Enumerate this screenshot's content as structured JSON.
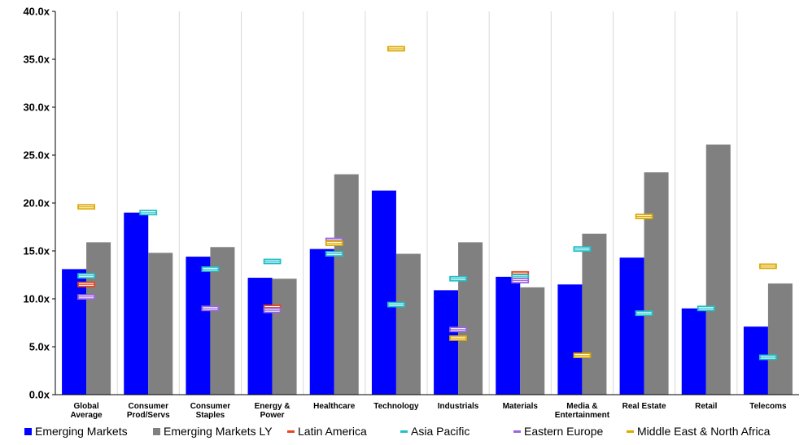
{
  "chart_data": {
    "type": "bar",
    "title": "",
    "xlabel": "",
    "ylabel": "",
    "ylim": [
      0,
      40
    ],
    "yticks": [
      "0.0x",
      "5.0x",
      "10.0x",
      "15.0x",
      "20.0x",
      "25.0x",
      "30.0x",
      "35.0x",
      "40.0x"
    ],
    "grid": "vertical separators between categories",
    "legend_position": "bottom",
    "categories": [
      [
        "Global",
        "Average"
      ],
      [
        "Consumer",
        "Prod/Servs"
      ],
      [
        "Consumer",
        "Staples"
      ],
      [
        "Energy &",
        "Power"
      ],
      [
        "Healthcare"
      ],
      [
        "Technology"
      ],
      [
        "Industrials"
      ],
      [
        "Materials"
      ],
      [
        "Media &",
        "Entertainment"
      ],
      [
        "Real Estate"
      ],
      [
        "Retail"
      ],
      [
        "Telecoms"
      ]
    ],
    "bar_series": [
      {
        "name": "Emerging Markets",
        "color": "#0000ff",
        "values": [
          13.1,
          19.0,
          14.4,
          12.2,
          15.2,
          21.3,
          10.9,
          12.3,
          11.5,
          14.3,
          9.0,
          7.1
        ]
      },
      {
        "name": "Emerging Markets LY",
        "color": "#808080",
        "values": [
          15.9,
          14.8,
          15.4,
          12.1,
          23.0,
          14.7,
          15.9,
          11.2,
          16.8,
          23.2,
          26.1,
          11.6
        ]
      }
    ],
    "marker_series": [
      {
        "name": "Latin America",
        "color": "#e8461e",
        "values": [
          11.5,
          null,
          null,
          9.1,
          null,
          null,
          null,
          12.6,
          null,
          null,
          null,
          null
        ]
      },
      {
        "name": "Asia Pacific",
        "color": "#20c0c8",
        "values": [
          12.4,
          19.0,
          13.1,
          13.9,
          14.7,
          9.4,
          12.1,
          12.3,
          15.2,
          8.5,
          9.0,
          3.9
        ]
      },
      {
        "name": "Eastern Europe",
        "color": "#9966dd",
        "values": [
          10.2,
          null,
          9.0,
          8.8,
          16.1,
          null,
          6.8,
          11.9,
          null,
          null,
          null,
          null
        ]
      },
      {
        "name": "Middle East & North Africa",
        "color": "#ddaa00",
        "values": [
          19.6,
          null,
          null,
          null,
          15.8,
          36.1,
          5.9,
          null,
          4.1,
          18.6,
          null,
          13.4
        ]
      }
    ]
  }
}
